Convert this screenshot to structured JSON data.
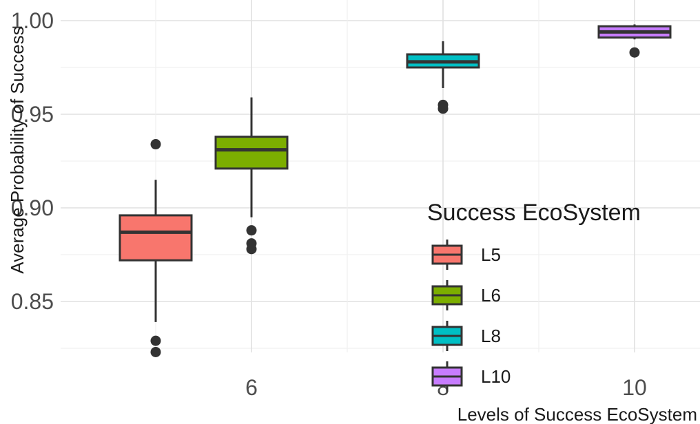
{
  "chart_data": {
    "type": "boxplot",
    "title": "",
    "xlabel": "Levels of Success EcoSystem",
    "ylabel": "Average Probability of Success",
    "ylim": [
      0.81,
      1.008
    ],
    "xlim": [
      4,
      11
    ],
    "x_ticks": [
      6,
      8,
      10
    ],
    "y_ticks": [
      0.85,
      0.9,
      0.95,
      1.0
    ],
    "y_tick_labels": [
      "0.85",
      "0.90",
      "0.95",
      "1.00"
    ],
    "grid": true,
    "legend": {
      "title": "Success EcoSystem",
      "position": "right-inside"
    },
    "series": [
      {
        "name": "L5",
        "x": 5,
        "color": "#F8766D",
        "whisker_low": 0.839,
        "q1": 0.872,
        "median": 0.887,
        "q3": 0.896,
        "whisker_high": 0.915,
        "outliers": [
          0.934,
          0.829,
          0.823
        ]
      },
      {
        "name": "L6",
        "x": 6,
        "color": "#7CAE00",
        "whisker_low": 0.895,
        "q1": 0.921,
        "median": 0.931,
        "q3": 0.938,
        "whisker_high": 0.959,
        "outliers": [
          0.888,
          0.881,
          0.878
        ]
      },
      {
        "name": "L8",
        "x": 8,
        "color": "#00BFC4",
        "whisker_low": 0.964,
        "q1": 0.975,
        "median": 0.978,
        "q3": 0.982,
        "whisker_high": 0.989,
        "outliers": [
          0.955,
          0.953
        ]
      },
      {
        "name": "L10",
        "x": 10,
        "color": "#C77CFF",
        "whisker_low": 0.99,
        "q1": 0.991,
        "median": 0.994,
        "q3": 0.997,
        "whisker_high": 0.998,
        "outliers": [
          0.983
        ]
      }
    ]
  }
}
